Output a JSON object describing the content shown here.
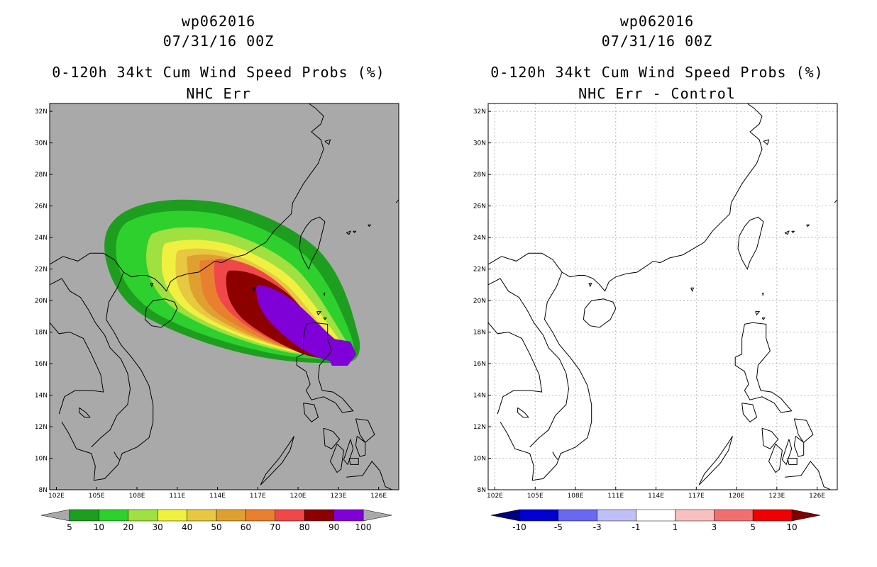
{
  "chart_data": [
    {
      "type": "heatmap",
      "storm_id": "wp062016",
      "datetime": "07/31/16 00Z",
      "title": "0-120h 34kt Cum Wind Speed Probs (%)",
      "subtitle": "NHC Err",
      "lon_range": [
        101.5,
        127.5
      ],
      "lat_range": [
        8,
        32.5
      ],
      "x_ticks": [
        "102E",
        "105E",
        "108E",
        "111E",
        "114E",
        "117E",
        "120E",
        "123E",
        "126E"
      ],
      "y_ticks": [
        "8N",
        "10N",
        "12N",
        "14N",
        "16N",
        "18N",
        "20N",
        "22N",
        "24N",
        "26N",
        "28N",
        "30N",
        "32N"
      ],
      "background_color": "#a9a9a9",
      "colorbar": {
        "levels": [
          "5",
          "10",
          "20",
          "30",
          "40",
          "50",
          "60",
          "70",
          "80",
          "90",
          "100"
        ],
        "colors": [
          "#1e9e1e",
          "#2ed02e",
          "#a0e040",
          "#f0f040",
          "#e8c840",
          "#e0a030",
          "#e88030",
          "#f04848",
          "#8c0000",
          "#8000d8"
        ],
        "extend_color": "#a9a9a9"
      },
      "probability_swath": {
        "description": "cumulative 34kt wind probability swath from near 124E 16.5N toward southern China coast",
        "track": [
          [
            124.0,
            16.6
          ],
          [
            122.0,
            18.0
          ],
          [
            119.8,
            19.6
          ],
          [
            117.5,
            21.0
          ],
          [
            115.0,
            22.2
          ],
          [
            112.5,
            23.0
          ]
        ]
      }
    },
    {
      "type": "heatmap",
      "storm_id": "wp062016",
      "datetime": "07/31/16 00Z",
      "title": "0-120h 34kt Cum Wind Speed Probs (%)",
      "subtitle": "NHC Err - Control",
      "lon_range": [
        101.5,
        127.5
      ],
      "lat_range": [
        8,
        32.5
      ],
      "x_ticks": [
        "102E",
        "105E",
        "108E",
        "111E",
        "114E",
        "117E",
        "120E",
        "123E",
        "126E"
      ],
      "y_ticks": [
        "8N",
        "10N",
        "12N",
        "14N",
        "16N",
        "18N",
        "20N",
        "22N",
        "24N",
        "26N",
        "28N",
        "30N",
        "32N"
      ],
      "grid": true,
      "background_color": "#ffffff",
      "colorbar": {
        "levels": [
          "-10",
          "-5",
          "-3",
          "-1",
          "1",
          "3",
          "5",
          "10"
        ],
        "colors": [
          "#0000d0",
          "#6868f0",
          "#c0c0f8",
          "#ffffff",
          "#f8c0c0",
          "#f07070",
          "#f00000"
        ],
        "extend_low_color": "#000080",
        "extend_high_color": "#800000"
      },
      "difference_field": "none (all values between -1 and 1)"
    }
  ]
}
